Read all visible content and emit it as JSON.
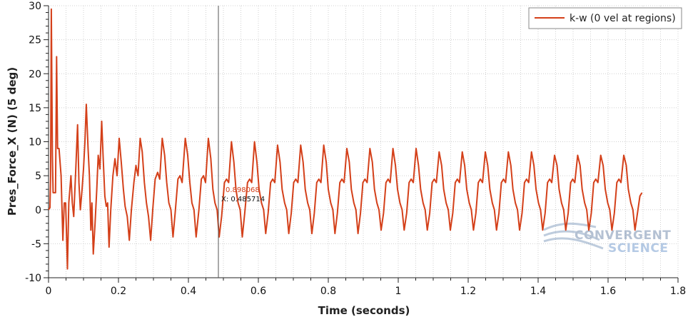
{
  "chart_data": {
    "type": "line",
    "title": "",
    "xlabel": "Time (seconds)",
    "ylabel": "Pres_Force_X (N) (5 deg)",
    "xlim": [
      0,
      1.8
    ],
    "ylim": [
      -10,
      30
    ],
    "x_ticks": [
      "0",
      "0.2",
      "0.4",
      "0.6",
      "0.8",
      "1",
      "1.2",
      "1.4",
      "1.6",
      "1.8"
    ],
    "y_ticks": [
      "-10",
      "-5",
      "0",
      "5",
      "10",
      "15",
      "20",
      "25",
      "30"
    ],
    "grid": true,
    "legend_position": "top-right",
    "series": [
      {
        "name": "k-w (0 vel at regions)",
        "color": "#d4401a",
        "points": [
          [
            0.0,
            0.0
          ],
          [
            0.004,
            0.3
          ],
          [
            0.006,
            5.0
          ],
          [
            0.008,
            29.5
          ],
          [
            0.011,
            8.0
          ],
          [
            0.013,
            2.5
          ],
          [
            0.02,
            2.5
          ],
          [
            0.023,
            22.5
          ],
          [
            0.026,
            9.0
          ],
          [
            0.03,
            9.0
          ],
          [
            0.036,
            5.0
          ],
          [
            0.041,
            -4.5
          ],
          [
            0.045,
            1.0
          ],
          [
            0.049,
            1.0
          ],
          [
            0.054,
            -8.7
          ],
          [
            0.058,
            1.0
          ],
          [
            0.064,
            5.0
          ],
          [
            0.068,
            1.0
          ],
          [
            0.072,
            -1.0
          ],
          [
            0.078,
            6.0
          ],
          [
            0.083,
            12.5
          ],
          [
            0.087,
            4.0
          ],
          [
            0.091,
            0.0
          ],
          [
            0.096,
            3.0
          ],
          [
            0.1,
            6.0
          ],
          [
            0.104,
            10.0
          ],
          [
            0.108,
            15.5
          ],
          [
            0.113,
            9.0
          ],
          [
            0.117,
            5.0
          ],
          [
            0.121,
            -3.0
          ],
          [
            0.124,
            1.0
          ],
          [
            0.128,
            -6.5
          ],
          [
            0.133,
            -2.0
          ],
          [
            0.138,
            3.0
          ],
          [
            0.142,
            8.0
          ],
          [
            0.147,
            6.0
          ],
          [
            0.152,
            13.0
          ],
          [
            0.156,
            8.0
          ],
          [
            0.161,
            2.0
          ],
          [
            0.165,
            0.5
          ],
          [
            0.169,
            1.0
          ],
          [
            0.173,
            -5.5
          ],
          [
            0.178,
            0.0
          ],
          [
            0.184,
            5.0
          ],
          [
            0.19,
            7.5
          ],
          [
            0.196,
            5.0
          ],
          [
            0.202,
            10.5
          ],
          [
            0.208,
            7.0
          ],
          [
            0.214,
            3.0
          ],
          [
            0.219,
            0.5
          ],
          [
            0.225,
            -1.0
          ],
          [
            0.231,
            -4.5
          ],
          [
            0.237,
            0.0
          ],
          [
            0.244,
            4.0
          ],
          [
            0.25,
            6.5
          ],
          [
            0.256,
            5.0
          ],
          [
            0.262,
            10.5
          ],
          [
            0.268,
            8.5
          ],
          [
            0.274,
            4.0
          ],
          [
            0.28,
            1.0
          ],
          [
            0.286,
            -1.0
          ],
          [
            0.292,
            -4.5
          ],
          [
            0.298,
            0.0
          ],
          [
            0.305,
            4.5
          ],
          [
            0.312,
            5.5
          ],
          [
            0.318,
            4.5
          ],
          [
            0.325,
            10.5
          ],
          [
            0.332,
            8.0
          ],
          [
            0.338,
            4.0
          ],
          [
            0.344,
            1.0
          ],
          [
            0.35,
            0.0
          ],
          [
            0.356,
            -4.0
          ],
          [
            0.362,
            -0.5
          ],
          [
            0.37,
            4.5
          ],
          [
            0.376,
            5.0
          ],
          [
            0.382,
            4.0
          ],
          [
            0.391,
            10.5
          ],
          [
            0.398,
            8.0
          ],
          [
            0.404,
            4.0
          ],
          [
            0.41,
            1.0
          ],
          [
            0.416,
            0.0
          ],
          [
            0.422,
            -4.0
          ],
          [
            0.43,
            0.0
          ],
          [
            0.437,
            4.5
          ],
          [
            0.443,
            5.0
          ],
          [
            0.449,
            4.0
          ],
          [
            0.457,
            10.5
          ],
          [
            0.464,
            7.5
          ],
          [
            0.47,
            3.0
          ],
          [
            0.476,
            1.0
          ],
          [
            0.482,
            0.0
          ],
          [
            0.488,
            -4.0
          ],
          [
            0.495,
            -1.0
          ],
          [
            0.503,
            4.0
          ],
          [
            0.509,
            4.5
          ],
          [
            0.515,
            4.0
          ],
          [
            0.523,
            10.0
          ],
          [
            0.53,
            7.0
          ],
          [
            0.536,
            3.0
          ],
          [
            0.542,
            1.0
          ],
          [
            0.548,
            0.0
          ],
          [
            0.554,
            -4.0
          ],
          [
            0.561,
            -0.5
          ],
          [
            0.569,
            4.0
          ],
          [
            0.575,
            4.5
          ],
          [
            0.581,
            4.0
          ],
          [
            0.589,
            10.0
          ],
          [
            0.596,
            7.0
          ],
          [
            0.602,
            3.0
          ],
          [
            0.609,
            1.0
          ],
          [
            0.615,
            0.0
          ],
          [
            0.621,
            -3.5
          ],
          [
            0.628,
            -0.5
          ],
          [
            0.635,
            4.0
          ],
          [
            0.641,
            4.5
          ],
          [
            0.647,
            4.0
          ],
          [
            0.655,
            9.5
          ],
          [
            0.662,
            7.0
          ],
          [
            0.668,
            3.0
          ],
          [
            0.675,
            1.0
          ],
          [
            0.681,
            0.0
          ],
          [
            0.687,
            -3.5
          ],
          [
            0.694,
            -0.5
          ],
          [
            0.701,
            4.0
          ],
          [
            0.707,
            4.5
          ],
          [
            0.713,
            4.0
          ],
          [
            0.721,
            9.5
          ],
          [
            0.728,
            7.0
          ],
          [
            0.734,
            3.0
          ],
          [
            0.741,
            1.0
          ],
          [
            0.747,
            0.0
          ],
          [
            0.753,
            -3.5
          ],
          [
            0.76,
            -0.5
          ],
          [
            0.767,
            4.0
          ],
          [
            0.773,
            4.5
          ],
          [
            0.779,
            4.0
          ],
          [
            0.787,
            9.5
          ],
          [
            0.794,
            7.0
          ],
          [
            0.8,
            3.0
          ],
          [
            0.807,
            1.0
          ],
          [
            0.813,
            0.0
          ],
          [
            0.819,
            -3.5
          ],
          [
            0.826,
            -0.5
          ],
          [
            0.833,
            4.0
          ],
          [
            0.839,
            4.5
          ],
          [
            0.845,
            4.0
          ],
          [
            0.853,
            9.0
          ],
          [
            0.86,
            7.0
          ],
          [
            0.866,
            3.0
          ],
          [
            0.873,
            1.0
          ],
          [
            0.879,
            0.0
          ],
          [
            0.885,
            -3.5
          ],
          [
            0.892,
            -0.5
          ],
          [
            0.899,
            4.0
          ],
          [
            0.905,
            4.5
          ],
          [
            0.911,
            4.0
          ],
          [
            0.919,
            9.0
          ],
          [
            0.926,
            7.0
          ],
          [
            0.932,
            3.0
          ],
          [
            0.939,
            1.0
          ],
          [
            0.945,
            0.0
          ],
          [
            0.951,
            -3.0
          ],
          [
            0.958,
            -0.5
          ],
          [
            0.965,
            4.0
          ],
          [
            0.971,
            4.5
          ],
          [
            0.977,
            4.0
          ],
          [
            0.985,
            9.0
          ],
          [
            0.992,
            6.5
          ],
          [
            0.998,
            3.0
          ],
          [
            1.005,
            1.0
          ],
          [
            1.011,
            0.0
          ],
          [
            1.017,
            -3.0
          ],
          [
            1.024,
            -0.5
          ],
          [
            1.031,
            4.0
          ],
          [
            1.037,
            4.5
          ],
          [
            1.043,
            4.0
          ],
          [
            1.051,
            9.0
          ],
          [
            1.058,
            6.5
          ],
          [
            1.064,
            3.0
          ],
          [
            1.071,
            1.0
          ],
          [
            1.077,
            0.0
          ],
          [
            1.083,
            -3.0
          ],
          [
            1.09,
            -0.5
          ],
          [
            1.097,
            4.0
          ],
          [
            1.103,
            4.5
          ],
          [
            1.109,
            4.0
          ],
          [
            1.117,
            8.5
          ],
          [
            1.124,
            6.5
          ],
          [
            1.13,
            3.0
          ],
          [
            1.137,
            1.0
          ],
          [
            1.143,
            0.0
          ],
          [
            1.149,
            -3.0
          ],
          [
            1.156,
            -0.5
          ],
          [
            1.163,
            4.0
          ],
          [
            1.169,
            4.5
          ],
          [
            1.175,
            4.0
          ],
          [
            1.183,
            8.5
          ],
          [
            1.19,
            6.5
          ],
          [
            1.196,
            3.0
          ],
          [
            1.203,
            1.0
          ],
          [
            1.209,
            0.0
          ],
          [
            1.215,
            -3.0
          ],
          [
            1.222,
            -0.5
          ],
          [
            1.229,
            4.0
          ],
          [
            1.235,
            4.5
          ],
          [
            1.241,
            4.0
          ],
          [
            1.249,
            8.5
          ],
          [
            1.256,
            6.5
          ],
          [
            1.262,
            3.0
          ],
          [
            1.269,
            1.0
          ],
          [
            1.275,
            0.0
          ],
          [
            1.281,
            -3.0
          ],
          [
            1.288,
            -0.5
          ],
          [
            1.295,
            4.0
          ],
          [
            1.301,
            4.5
          ],
          [
            1.307,
            4.0
          ],
          [
            1.315,
            8.5
          ],
          [
            1.322,
            6.5
          ],
          [
            1.328,
            3.0
          ],
          [
            1.335,
            1.0
          ],
          [
            1.341,
            0.0
          ],
          [
            1.347,
            -3.0
          ],
          [
            1.354,
            -0.5
          ],
          [
            1.361,
            4.0
          ],
          [
            1.367,
            4.5
          ],
          [
            1.373,
            4.0
          ],
          [
            1.381,
            8.5
          ],
          [
            1.388,
            6.5
          ],
          [
            1.394,
            3.0
          ],
          [
            1.401,
            1.0
          ],
          [
            1.407,
            0.0
          ],
          [
            1.413,
            -3.0
          ],
          [
            1.42,
            -0.5
          ],
          [
            1.427,
            4.0
          ],
          [
            1.433,
            4.5
          ],
          [
            1.439,
            4.0
          ],
          [
            1.447,
            8.0
          ],
          [
            1.454,
            6.5
          ],
          [
            1.46,
            3.0
          ],
          [
            1.467,
            1.0
          ],
          [
            1.473,
            0.0
          ],
          [
            1.479,
            -3.0
          ],
          [
            1.486,
            -0.5
          ],
          [
            1.493,
            4.0
          ],
          [
            1.499,
            4.5
          ],
          [
            1.505,
            4.0
          ],
          [
            1.513,
            8.0
          ],
          [
            1.52,
            6.5
          ],
          [
            1.526,
            3.0
          ],
          [
            1.533,
            1.0
          ],
          [
            1.539,
            0.0
          ],
          [
            1.545,
            -3.0
          ],
          [
            1.552,
            -0.5
          ],
          [
            1.559,
            4.0
          ],
          [
            1.565,
            4.5
          ],
          [
            1.571,
            4.0
          ],
          [
            1.579,
            8.0
          ],
          [
            1.586,
            6.5
          ],
          [
            1.592,
            3.0
          ],
          [
            1.599,
            1.0
          ],
          [
            1.605,
            0.0
          ],
          [
            1.611,
            -3.0
          ],
          [
            1.618,
            -0.5
          ],
          [
            1.625,
            4.0
          ],
          [
            1.631,
            4.5
          ],
          [
            1.637,
            4.0
          ],
          [
            1.645,
            8.0
          ],
          [
            1.652,
            6.5
          ],
          [
            1.658,
            3.0
          ],
          [
            1.665,
            1.0
          ],
          [
            1.671,
            0.0
          ],
          [
            1.677,
            -3.0
          ],
          [
            1.684,
            -0.5
          ],
          [
            1.691,
            2.0
          ],
          [
            1.697,
            2.5
          ]
        ]
      }
    ],
    "cursor": {
      "x": 0.485714,
      "y": 0.898068,
      "x_text": "X: 0.485714",
      "y_text": "0.898068"
    }
  },
  "watermark": {
    "line1": "CONVERGENT",
    "line2": "SCIENCE"
  }
}
